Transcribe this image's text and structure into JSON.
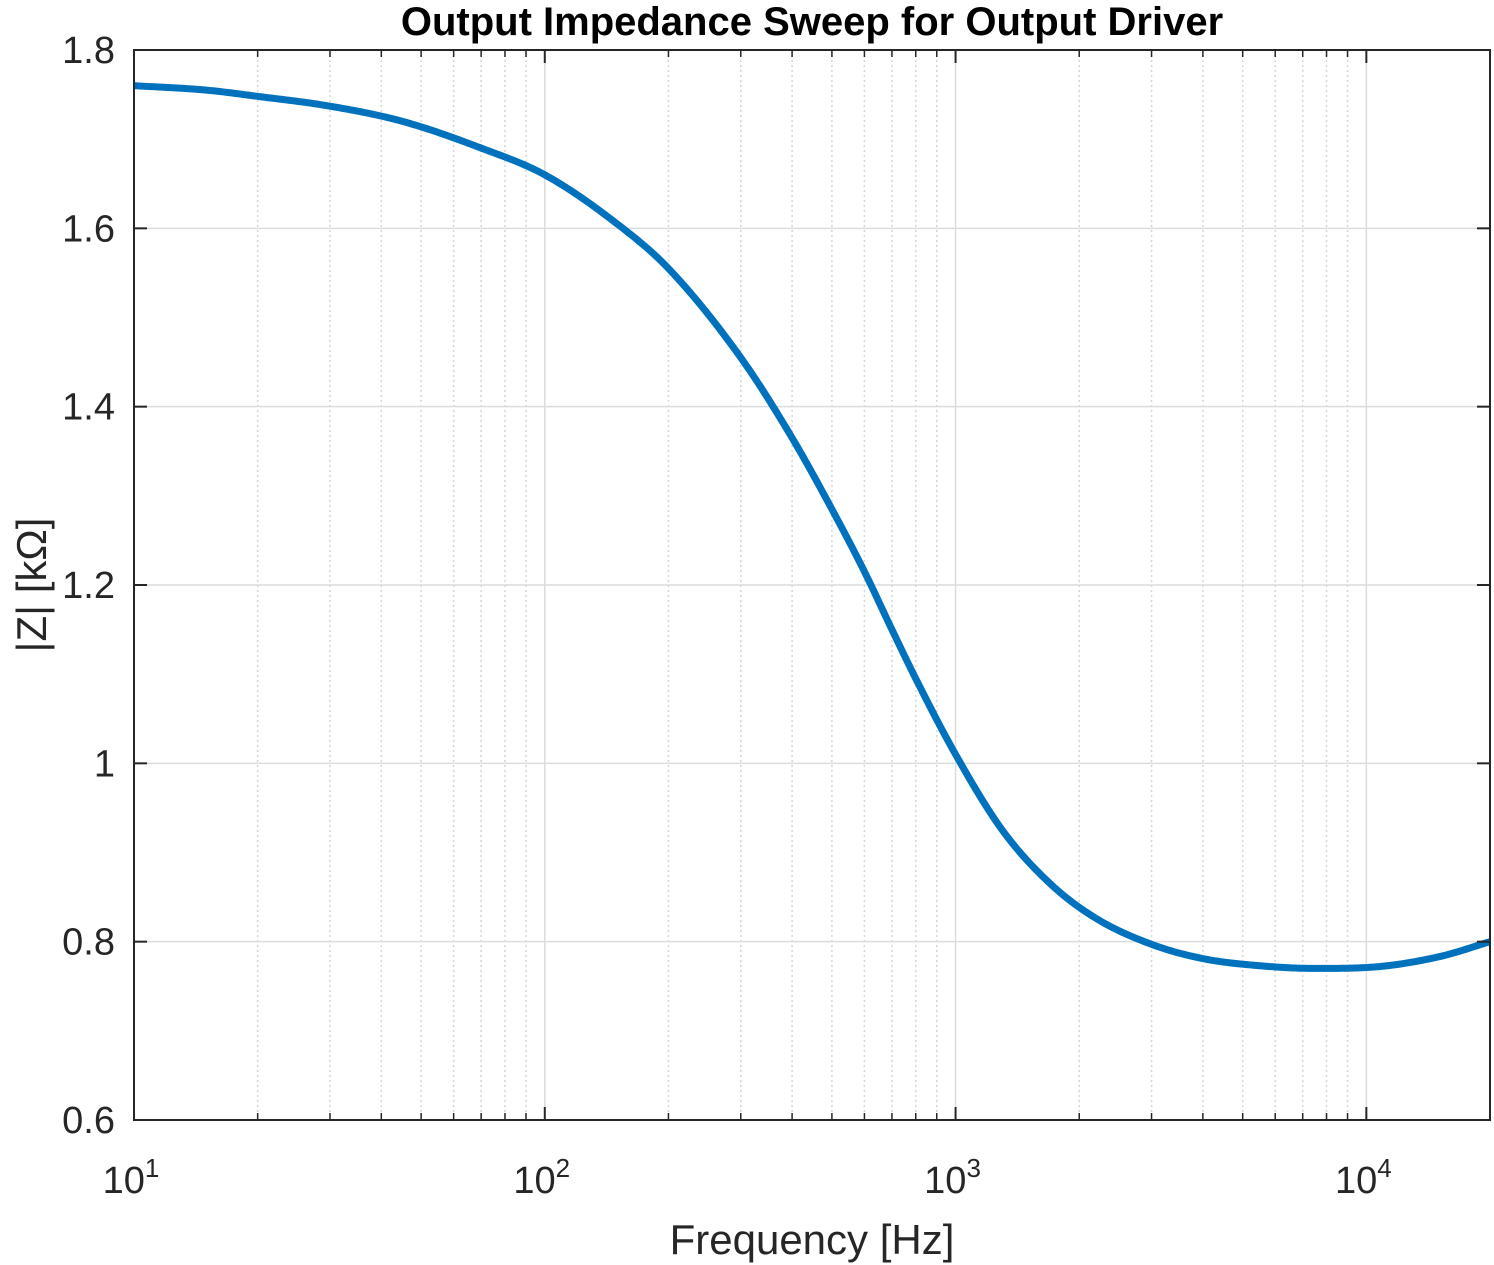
{
  "chart_data": {
    "type": "line",
    "title": "Output Impedance Sweep for Output Driver",
    "xlabel": "Frequency [Hz]",
    "ylabel": "|Z| [kΩ]",
    "xscale": "log",
    "xlim": [
      10,
      20000
    ],
    "ylim": [
      0.6,
      1.8
    ],
    "grid": true,
    "minor_grid_x": true,
    "line_color": "#0072BD",
    "x_ticks": [
      {
        "value": 10,
        "base": "10",
        "exp": "1"
      },
      {
        "value": 100,
        "base": "10",
        "exp": "2"
      },
      {
        "value": 1000,
        "base": "10",
        "exp": "3"
      },
      {
        "value": 10000,
        "base": "10",
        "exp": "4"
      }
    ],
    "y_ticks": [
      {
        "value": 0.6,
        "label": "0.6"
      },
      {
        "value": 0.8,
        "label": "0.8"
      },
      {
        "value": 1.0,
        "label": "1"
      },
      {
        "value": 1.2,
        "label": "1.2"
      },
      {
        "value": 1.4,
        "label": "1.4"
      },
      {
        "value": 1.6,
        "label": "1.6"
      },
      {
        "value": 1.8,
        "label": "1.8"
      }
    ],
    "series": [
      {
        "x": [
          10,
          15,
          20,
          30,
          45,
          70,
          100,
          150,
          200,
          300,
          400,
          500,
          600,
          700,
          800,
          1000,
          1300,
          1700,
          2200,
          3000,
          4000,
          5500,
          7500,
          10000,
          15000,
          20000
        ],
        "y": [
          1.76,
          1.755,
          1.748,
          1.737,
          1.72,
          1.69,
          1.66,
          1.605,
          1.555,
          1.455,
          1.365,
          1.285,
          1.215,
          1.15,
          1.095,
          1.01,
          0.925,
          0.865,
          0.826,
          0.797,
          0.781,
          0.773,
          0.77,
          0.771,
          0.783,
          0.8
        ]
      }
    ]
  }
}
